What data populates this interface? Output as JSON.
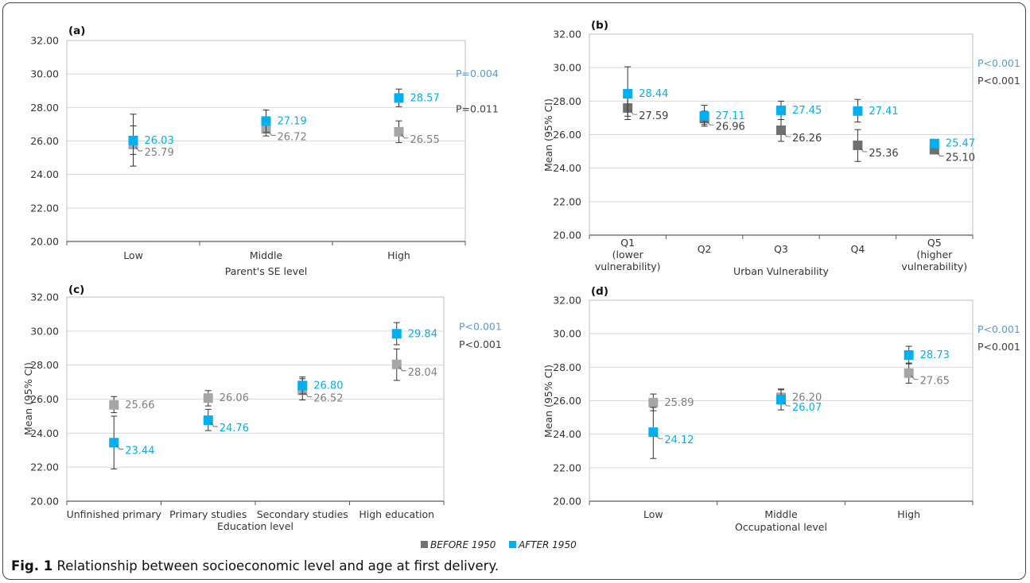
{
  "figure": {
    "caption_label": "Fig. 1",
    "caption_text": " Relationship between socioeconomic level and age at first delivery."
  },
  "legend": {
    "before_label": "BEFORE 1950",
    "after_label": "AFTER 1950",
    "placement": "bottom-center"
  },
  "colors": {
    "before_light": "#a6a6a6",
    "before_dark": "#707070",
    "after": "#00b0f0",
    "p_blue": "#5b9bd5",
    "p_gray": "#404040",
    "grid": "#d9d9d9",
    "axis": "#595959",
    "errorbar": "#333333"
  },
  "chart_data": [
    {
      "panel": "(a)",
      "type": "scatter",
      "xlabel": "Parent's SE level",
      "ylabel": "",
      "categories": [
        [
          "Low"
        ],
        [
          "Middle"
        ],
        [
          "High"
        ]
      ],
      "ylim": [
        20,
        32
      ],
      "yticks": [
        "20.00",
        "22.00",
        "24.00",
        "26.00",
        "28.00",
        "30.00",
        "32.00"
      ],
      "grid": true,
      "before_shade": "light",
      "series": [
        {
          "name": "BEFORE 1950",
          "values": [
            25.79,
            26.72,
            26.55
          ],
          "labels": [
            "25.79",
            "26.72",
            "26.55"
          ],
          "ci_low": [
            24.5,
            26.3,
            25.9
          ],
          "ci_high": [
            27.6,
            27.2,
            27.2
          ]
        },
        {
          "name": "AFTER 1950",
          "values": [
            26.03,
            27.19,
            28.57
          ],
          "labels": [
            "26.03",
            "27.19",
            "28.57"
          ],
          "ci_low": [
            25.2,
            26.5,
            28.05
          ],
          "ci_high": [
            26.9,
            27.85,
            29.1
          ]
        }
      ],
      "pvalues": [
        {
          "text": "P=0.004",
          "series": "after"
        },
        {
          "text": "P=0.011",
          "series": "before"
        }
      ]
    },
    {
      "panel": "(b)",
      "type": "scatter",
      "xlabel": "Urban Vulnerability",
      "ylabel": "Mean (95% CI)",
      "categories": [
        [
          "Q1",
          "(lower",
          "vulnerability)"
        ],
        [
          "Q2"
        ],
        [
          "Q3"
        ],
        [
          "Q4"
        ],
        [
          "Q5",
          "(higher",
          "vulnerability)"
        ]
      ],
      "ylim": [
        20,
        32
      ],
      "yticks": [
        "20.00",
        "22.00",
        "24.00",
        "26.00",
        "28.00",
        "30.00",
        "32.00"
      ],
      "grid": true,
      "before_shade": "dark",
      "series": [
        {
          "name": "BEFORE 1950",
          "values": [
            27.59,
            26.96,
            26.26,
            25.36,
            25.1
          ],
          "labels": [
            "27.59",
            "26.96",
            "26.26",
            "25.36",
            "25.10"
          ],
          "ci_low": [
            26.9,
            26.5,
            25.6,
            24.4,
            24.9
          ],
          "ci_high": [
            28.2,
            27.4,
            26.9,
            26.3,
            25.3
          ]
        },
        {
          "name": "AFTER 1950",
          "values": [
            28.44,
            27.11,
            27.45,
            27.41,
            25.47
          ],
          "labels": [
            "28.44",
            "27.11",
            "27.45",
            "27.41",
            "25.47"
          ],
          "ci_low": [
            27.1,
            26.6,
            26.9,
            26.75,
            25.3
          ],
          "ci_high": [
            30.05,
            27.75,
            28.0,
            28.1,
            25.65
          ]
        }
      ],
      "pvalues": [
        {
          "text": "P<0.001",
          "series": "after"
        },
        {
          "text": "P<0.001",
          "series": "before"
        }
      ]
    },
    {
      "panel": "(c)",
      "type": "scatter",
      "xlabel": "Education level",
      "ylabel": "Mean (95% CI)",
      "categories": [
        [
          "Unfinished primary"
        ],
        [
          "Primary studies"
        ],
        [
          "Secondary studies"
        ],
        [
          "High education"
        ]
      ],
      "ylim": [
        20,
        32
      ],
      "yticks": [
        "20.00",
        "22.00",
        "24.00",
        "26.00",
        "28.00",
        "30.00",
        "32.00"
      ],
      "grid": true,
      "before_shade": "light",
      "series": [
        {
          "name": "BEFORE 1950",
          "values": [
            25.66,
            26.06,
            26.52,
            28.04
          ],
          "labels": [
            "25.66",
            "26.06",
            "26.52",
            "28.04"
          ],
          "ci_low": [
            25.2,
            25.6,
            25.95,
            27.1
          ],
          "ci_high": [
            26.15,
            26.5,
            27.2,
            28.95
          ]
        },
        {
          "name": "AFTER 1950",
          "values": [
            23.44,
            24.76,
            26.8,
            29.84
          ],
          "labels": [
            "23.44",
            "24.76",
            "26.80",
            "29.84"
          ],
          "ci_low": [
            21.9,
            24.15,
            26.3,
            29.2
          ],
          "ci_high": [
            25.0,
            25.4,
            27.3,
            30.5
          ]
        }
      ],
      "pvalues": [
        {
          "text": "P<0.001",
          "series": "after"
        },
        {
          "text": "P<0.001",
          "series": "before"
        }
      ]
    },
    {
      "panel": "(d)",
      "type": "scatter",
      "xlabel": "Occupational level",
      "ylabel": "Mean (95% CI)",
      "categories": [
        [
          "Low"
        ],
        [
          "Middle"
        ],
        [
          "High"
        ]
      ],
      "ylim": [
        20,
        32
      ],
      "yticks": [
        "20.00",
        "22.00",
        "24.00",
        "26.00",
        "28.00",
        "30.00",
        "32.00"
      ],
      "grid": true,
      "before_shade": "light",
      "series": [
        {
          "name": "BEFORE 1950",
          "values": [
            25.89,
            26.2,
            27.65
          ],
          "labels": [
            "25.89",
            "26.20",
            "27.65"
          ],
          "ci_low": [
            25.4,
            25.8,
            27.05
          ],
          "ci_high": [
            26.4,
            26.65,
            28.25
          ]
        },
        {
          "name": "AFTER 1950",
          "values": [
            24.12,
            26.07,
            28.73
          ],
          "labels": [
            "24.12",
            "26.07",
            "28.73"
          ],
          "ci_low": [
            22.55,
            25.45,
            28.2
          ],
          "ci_high": [
            25.6,
            26.7,
            29.25
          ]
        }
      ],
      "pvalues": [
        {
          "text": "P<0.001",
          "series": "after"
        },
        {
          "text": "P<0.001",
          "series": "before"
        }
      ]
    }
  ]
}
